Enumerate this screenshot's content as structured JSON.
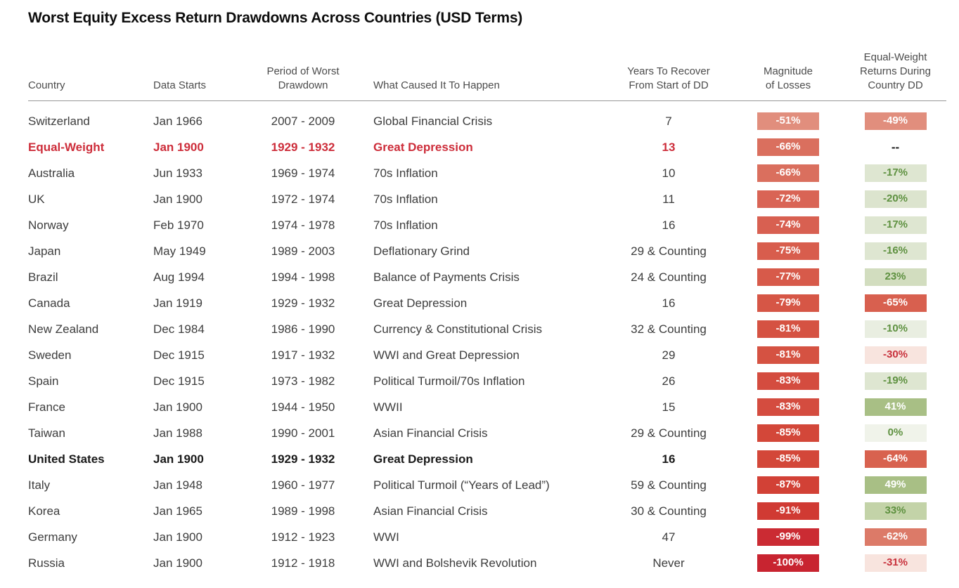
{
  "title": "Worst Equity Excess Return Drawdowns Across Countries (USD Terms)",
  "styles": {
    "accent_red": "#cd2d3a",
    "bold_black": "#1a1a1a",
    "header_text": "#4c4c4c",
    "body_text": "#3d3d3d",
    "separator_line": "#979797",
    "green_text": "#5e9140",
    "negative_text_red": "#c8313c",
    "badge_text_light": "#ffffff"
  },
  "chart_data": {
    "type": "table",
    "title": "Worst Equity Excess Return Drawdowns Across Countries (USD Terms)",
    "legend_position": "none",
    "grid": false,
    "columns": [
      {
        "key": "country",
        "label": "Country",
        "align": "left"
      },
      {
        "key": "data-starts",
        "label": "Data Starts",
        "align": "left"
      },
      {
        "key": "period",
        "label": "Period of Worst\nDrawdown",
        "align": "center"
      },
      {
        "key": "cause",
        "label": "What Caused It To Happen",
        "align": "left cause"
      },
      {
        "key": "years",
        "label": "Years To Recover\nFrom Start of DD",
        "align": "center"
      },
      {
        "key": "magnitude",
        "label": "Magnitude\nof Losses",
        "align": "center"
      },
      {
        "key": "equal-weight",
        "label": "Equal-Weight\nReturns During\nCountry DD",
        "align": "center"
      }
    ],
    "rows": [
      {
        "style": "normal",
        "country": "Switzerland",
        "data_starts": "Jan 1966",
        "period": "2007 - 2009",
        "cause": "Global Financial Crisis",
        "years": "7",
        "magnitude": {
          "label": "-51%",
          "bg": "#e18e7d",
          "color": "#ffffff"
        },
        "equal_weight": {
          "label": "-49%",
          "bg": "#e18e7d",
          "color": "#ffffff"
        }
      },
      {
        "style": "highlight-red",
        "country": "Equal-Weight",
        "data_starts": "Jan 1900",
        "period": "1929 - 1932",
        "cause": "Great Depression",
        "years": "13",
        "magnitude": {
          "label": "-66%",
          "bg": "#da6f5e",
          "color": "#ffffff"
        },
        "equal_weight": {
          "label": "--",
          "bg": "",
          "color": "#1a1a1a"
        }
      },
      {
        "style": "normal",
        "country": "Australia",
        "data_starts": "Jun 1933",
        "period": "1969 - 1974",
        "cause": "70s Inflation",
        "years": "10",
        "magnitude": {
          "label": "-66%",
          "bg": "#da6f5e",
          "color": "#ffffff"
        },
        "equal_weight": {
          "label": "-17%",
          "bg": "#dee6d1",
          "color": "#5e9140"
        }
      },
      {
        "style": "normal",
        "country": "UK",
        "data_starts": "Jan 1900",
        "period": "1972 - 1974",
        "cause": "70s Inflation",
        "years": "11",
        "magnitude": {
          "label": "-72%",
          "bg": "#d96455",
          "color": "#ffffff"
        },
        "equal_weight": {
          "label": "-20%",
          "bg": "#dce4ce",
          "color": "#5e9140"
        }
      },
      {
        "style": "normal",
        "country": "Norway",
        "data_starts": "Feb 1970",
        "period": "1974 - 1978",
        "cause": "70s Inflation",
        "years": "16",
        "magnitude": {
          "label": "-74%",
          "bg": "#d86051",
          "color": "#ffffff"
        },
        "equal_weight": {
          "label": "-17%",
          "bg": "#dee6d1",
          "color": "#5e9140"
        }
      },
      {
        "style": "normal",
        "country": "Japan",
        "data_starts": "May 1949",
        "period": "1989 - 2003",
        "cause": "Deflationary Grind",
        "years": "29 & Counting",
        "magnitude": {
          "label": "-75%",
          "bg": "#d85d4d",
          "color": "#ffffff"
        },
        "equal_weight": {
          "label": "-16%",
          "bg": "#dee6d1",
          "color": "#5e9140"
        }
      },
      {
        "style": "normal",
        "country": "Brazil",
        "data_starts": "Aug 1994",
        "period": "1994 - 1998",
        "cause": "Balance of Payments Crisis",
        "years": "24 & Counting",
        "magnitude": {
          "label": "-77%",
          "bg": "#d75a4a",
          "color": "#ffffff"
        },
        "equal_weight": {
          "label": "23%",
          "bg": "#d2ddbf",
          "color": "#5e9140"
        }
      },
      {
        "style": "normal",
        "country": "Canada",
        "data_starts": "Jan 1919",
        "period": "1929 - 1932",
        "cause": "Great Depression",
        "years": "16",
        "magnitude": {
          "label": "-79%",
          "bg": "#d65646",
          "color": "#ffffff"
        },
        "equal_weight": {
          "label": "-65%",
          "bg": "#d8604f",
          "color": "#ffffff"
        }
      },
      {
        "style": "normal",
        "country": "New Zealand",
        "data_starts": "Dec 1984",
        "period": "1986 - 1990",
        "cause": "Currency & Constitutional Crisis",
        "years": "32 & Counting",
        "magnitude": {
          "label": "-81%",
          "bg": "#d55242",
          "color": "#ffffff"
        },
        "equal_weight": {
          "label": "-10%",
          "bg": "#e9eee1",
          "color": "#5e9140"
        }
      },
      {
        "style": "normal",
        "country": "Sweden",
        "data_starts": "Dec 1915",
        "period": "1917 - 1932",
        "cause": "WWI and Great Depression",
        "years": "29",
        "magnitude": {
          "label": "-81%",
          "bg": "#d55242",
          "color": "#ffffff"
        },
        "equal_weight": {
          "label": "-30%",
          "bg": "#f8e4de",
          "color": "#c8313c"
        }
      },
      {
        "style": "normal",
        "country": "Spain",
        "data_starts": "Dec 1915",
        "period": "1973 - 1982",
        "cause": "Political Turmoil/70s Inflation",
        "years": "26",
        "magnitude": {
          "label": "-83%",
          "bg": "#d44c3f",
          "color": "#ffffff"
        },
        "equal_weight": {
          "label": "-19%",
          "bg": "#dee6d1",
          "color": "#5e9140"
        }
      },
      {
        "style": "normal",
        "country": "France",
        "data_starts": "Jan 1900",
        "period": "1944 - 1950",
        "cause": "WWII",
        "years": "15",
        "magnitude": {
          "label": "-83%",
          "bg": "#d44c3f",
          "color": "#ffffff"
        },
        "equal_weight": {
          "label": "41%",
          "bg": "#a8bf85",
          "color": "#ffffff"
        }
      },
      {
        "style": "normal",
        "country": "Taiwan",
        "data_starts": "Jan 1988",
        "period": "1990 - 2001",
        "cause": "Asian Financial Crisis",
        "years": "29 & Counting",
        "magnitude": {
          "label": "-85%",
          "bg": "#d34739",
          "color": "#ffffff"
        },
        "equal_weight": {
          "label": "0%",
          "bg": "#f0f3ea",
          "color": "#5e9140"
        }
      },
      {
        "style": "bold",
        "country": "United States",
        "data_starts": "Jan 1900",
        "period": "1929 - 1932",
        "cause": "Great Depression",
        "years": "16",
        "magnitude": {
          "label": "-85%",
          "bg": "#d34739",
          "color": "#ffffff"
        },
        "equal_weight": {
          "label": "-64%",
          "bg": "#d8624f",
          "color": "#ffffff"
        }
      },
      {
        "style": "normal",
        "country": "Italy",
        "data_starts": "Jan 1948",
        "period": "1960 - 1977",
        "cause": "Political Turmoil (“Years of Lead”)",
        "years": "59 & Counting",
        "magnitude": {
          "label": "-87%",
          "bg": "#d24136",
          "color": "#ffffff"
        },
        "equal_weight": {
          "label": "49%",
          "bg": "#a8bf85",
          "color": "#ffffff"
        }
      },
      {
        "style": "normal",
        "country": "Korea",
        "data_starts": "Jan 1965",
        "period": "1989 - 1998",
        "cause": "Asian Financial Crisis",
        "years": "30 & Counting",
        "magnitude": {
          "label": "-91%",
          "bg": "#d03a33",
          "color": "#ffffff"
        },
        "equal_weight": {
          "label": "33%",
          "bg": "#c3d3a8",
          "color": "#5e9140"
        }
      },
      {
        "style": "normal",
        "country": "Germany",
        "data_starts": "Jan 1900",
        "period": "1912 - 1923",
        "cause": "WWI",
        "years": "47",
        "magnitude": {
          "label": "-99%",
          "bg": "#cb2b33",
          "color": "#ffffff"
        },
        "equal_weight": {
          "label": "-62%",
          "bg": "#dc7a68",
          "color": "#ffffff"
        }
      },
      {
        "style": "normal",
        "country": "Russia",
        "data_starts": "Jan 1900",
        "period": "1912 - 1918",
        "cause": "WWI and Bolshevik Revolution",
        "years": "Never",
        "magnitude": {
          "label": "-100%",
          "bg": "#c82430",
          "color": "#ffffff"
        },
        "equal_weight": {
          "label": "-31%",
          "bg": "#f8e4de",
          "color": "#c8313c"
        }
      }
    ]
  }
}
